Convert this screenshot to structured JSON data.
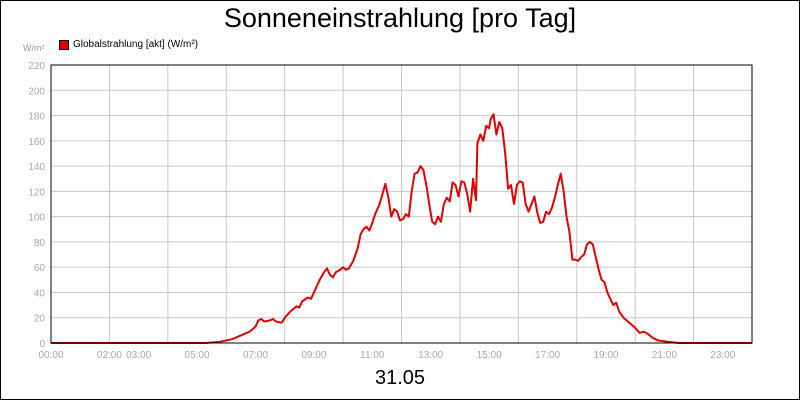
{
  "header": {
    "title": "Sonneneinstrahlung [pro Tag]",
    "unit_label": "W/m²",
    "date_label": "31.05"
  },
  "colors": {
    "series": "#e00000",
    "grid": "#c8c8c8",
    "axis_text": "#a8a8a8"
  },
  "chart_data": {
    "type": "line",
    "title": "Sonneneinstrahlung [pro Tag]",
    "xlabel": "31.05",
    "ylabel": "W/m²",
    "ylim": [
      0,
      220
    ],
    "xlim_hours": [
      0,
      24
    ],
    "grid": true,
    "legend_position": "top-left",
    "x_tick_labels": [
      {
        "hour": 0,
        "label": "00:00"
      },
      {
        "hour": 2,
        "label": "02:00"
      },
      {
        "hour": 3,
        "label": "03:00"
      },
      {
        "hour": 5,
        "label": "05:00"
      },
      {
        "hour": 7,
        "label": "07:00"
      },
      {
        "hour": 9,
        "label": "09:00"
      },
      {
        "hour": 11,
        "label": "11:00"
      },
      {
        "hour": 13,
        "label": "13:00"
      },
      {
        "hour": 15,
        "label": "15:00"
      },
      {
        "hour": 17,
        "label": "17:00"
      },
      {
        "hour": 19,
        "label": "19:00"
      },
      {
        "hour": 21,
        "label": "21:00"
      },
      {
        "hour": 23,
        "label": "23:00"
      }
    ],
    "y_ticks": [
      0,
      20,
      40,
      60,
      80,
      100,
      120,
      140,
      160,
      180,
      200,
      220
    ],
    "series": [
      {
        "name": "Globalstrahlung [akt] (W/m²)",
        "points": [
          [
            0,
            0
          ],
          [
            5.3,
            0
          ],
          [
            5.8,
            1
          ],
          [
            6.2,
            3
          ],
          [
            6.5,
            6
          ],
          [
            6.8,
            9
          ],
          [
            7.0,
            13
          ],
          [
            7.1,
            18
          ],
          [
            7.2,
            19
          ],
          [
            7.3,
            17
          ],
          [
            7.5,
            18
          ],
          [
            7.6,
            19
          ],
          [
            7.7,
            17
          ],
          [
            7.9,
            16
          ],
          [
            8.0,
            20
          ],
          [
            8.2,
            25
          ],
          [
            8.4,
            29
          ],
          [
            8.5,
            28
          ],
          [
            8.6,
            33
          ],
          [
            8.8,
            36
          ],
          [
            8.9,
            35
          ],
          [
            9.0,
            40
          ],
          [
            9.2,
            50
          ],
          [
            9.35,
            56
          ],
          [
            9.45,
            59
          ],
          [
            9.55,
            54
          ],
          [
            9.65,
            52
          ],
          [
            9.75,
            56
          ],
          [
            9.9,
            58
          ],
          [
            10.0,
            60
          ],
          [
            10.1,
            58
          ],
          [
            10.2,
            59
          ],
          [
            10.35,
            65
          ],
          [
            10.5,
            75
          ],
          [
            10.6,
            86
          ],
          [
            10.7,
            90
          ],
          [
            10.8,
            92
          ],
          [
            10.9,
            89
          ],
          [
            11.0,
            95
          ],
          [
            11.1,
            102
          ],
          [
            11.25,
            110
          ],
          [
            11.35,
            118
          ],
          [
            11.45,
            126
          ],
          [
            11.55,
            115
          ],
          [
            11.65,
            100
          ],
          [
            11.75,
            106
          ],
          [
            11.85,
            104
          ],
          [
            11.95,
            97
          ],
          [
            12.05,
            98
          ],
          [
            12.15,
            102
          ],
          [
            12.25,
            100
          ],
          [
            12.35,
            120
          ],
          [
            12.45,
            134
          ],
          [
            12.55,
            135
          ],
          [
            12.65,
            140
          ],
          [
            12.75,
            137
          ],
          [
            12.85,
            125
          ],
          [
            12.95,
            110
          ],
          [
            13.05,
            96
          ],
          [
            13.15,
            94
          ],
          [
            13.25,
            100
          ],
          [
            13.35,
            96
          ],
          [
            13.45,
            110
          ],
          [
            13.55,
            115
          ],
          [
            13.65,
            112
          ],
          [
            13.75,
            127
          ],
          [
            13.85,
            125
          ],
          [
            13.95,
            116
          ],
          [
            14.05,
            128
          ],
          [
            14.15,
            127
          ],
          [
            14.25,
            118
          ],
          [
            14.35,
            104
          ],
          [
            14.45,
            130
          ],
          [
            14.55,
            113
          ],
          [
            14.6,
            158
          ],
          [
            14.7,
            165
          ],
          [
            14.8,
            160
          ],
          [
            14.9,
            172
          ],
          [
            15.0,
            170
          ],
          [
            15.05,
            177
          ],
          [
            15.15,
            181
          ],
          [
            15.25,
            165
          ],
          [
            15.35,
            175
          ],
          [
            15.45,
            170
          ],
          [
            15.55,
            150
          ],
          [
            15.65,
            122
          ],
          [
            15.75,
            125
          ],
          [
            15.85,
            110
          ],
          [
            15.95,
            125
          ],
          [
            16.05,
            128
          ],
          [
            16.15,
            127
          ],
          [
            16.25,
            110
          ],
          [
            16.35,
            104
          ],
          [
            16.45,
            110
          ],
          [
            16.55,
            116
          ],
          [
            16.65,
            103
          ],
          [
            16.75,
            95
          ],
          [
            16.85,
            96
          ],
          [
            16.95,
            104
          ],
          [
            17.05,
            102
          ],
          [
            17.15,
            107
          ],
          [
            17.25,
            115
          ],
          [
            17.35,
            125
          ],
          [
            17.45,
            134
          ],
          [
            17.55,
            120
          ],
          [
            17.65,
            100
          ],
          [
            17.75,
            88
          ],
          [
            17.85,
            66
          ],
          [
            17.95,
            66
          ],
          [
            18.05,
            65
          ],
          [
            18.15,
            68
          ],
          [
            18.25,
            70
          ],
          [
            18.35,
            78
          ],
          [
            18.45,
            80
          ],
          [
            18.55,
            78
          ],
          [
            18.65,
            68
          ],
          [
            18.75,
            58
          ],
          [
            18.85,
            50
          ],
          [
            18.95,
            48
          ],
          [
            19.05,
            40
          ],
          [
            19.15,
            35
          ],
          [
            19.25,
            30
          ],
          [
            19.35,
            32
          ],
          [
            19.45,
            25
          ],
          [
            19.6,
            20
          ],
          [
            19.8,
            16
          ],
          [
            20.0,
            12
          ],
          [
            20.15,
            8
          ],
          [
            20.3,
            9
          ],
          [
            20.45,
            7
          ],
          [
            20.6,
            4
          ],
          [
            20.8,
            2
          ],
          [
            21.1,
            1
          ],
          [
            21.5,
            0
          ],
          [
            24.0,
            0
          ]
        ]
      }
    ]
  }
}
